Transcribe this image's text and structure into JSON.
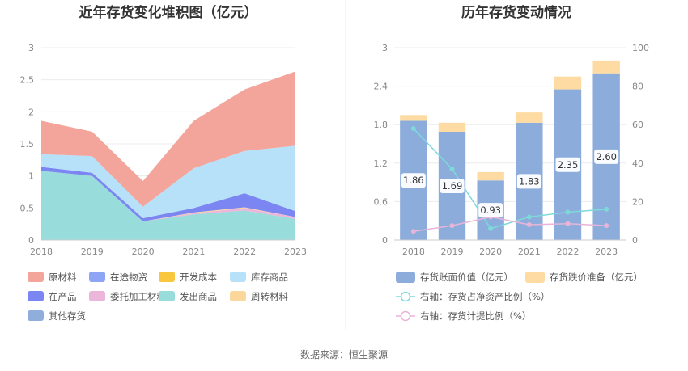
{
  "chart_data": [
    {
      "type": "area",
      "title": "近年存货变化堆积图（亿元）",
      "x": [
        "2018",
        "2019",
        "2020",
        "2021",
        "2022",
        "2023"
      ],
      "ylim": [
        0,
        3
      ],
      "yticks": [
        "0",
        "0.5",
        "1",
        "1.5",
        "2",
        "2.5",
        "3"
      ],
      "series": [
        {
          "name": "原材料",
          "color": "#f4a59b",
          "values": [
            0.52,
            0.38,
            0.4,
            0.74,
            0.96,
            1.16
          ]
        },
        {
          "name": "在途物资",
          "color": "#8ea4f5",
          "values": [
            0,
            0,
            0,
            0,
            0,
            0
          ]
        },
        {
          "name": "开发成本",
          "color": "#f9c73d",
          "values": [
            0,
            0,
            0,
            0,
            0,
            0
          ]
        },
        {
          "name": "库存商品",
          "color": "#b6e1f8",
          "values": [
            0.2,
            0.26,
            0.18,
            0.62,
            0.66,
            1.02
          ]
        },
        {
          "name": "在产品",
          "color": "#7b86f2",
          "values": [
            0.06,
            0.05,
            0.05,
            0.07,
            0.22,
            0.09
          ]
        },
        {
          "name": "委托加工材料",
          "color": "#ebb6d9",
          "values": [
            0,
            0,
            0,
            0.02,
            0.04,
            0.03
          ]
        },
        {
          "name": "发出商品",
          "color": "#98dcdc",
          "values": [
            1.08,
            1.0,
            0.29,
            0.4,
            0.46,
            0.33
          ]
        },
        {
          "name": "周转材料",
          "color": "#fbd79b",
          "values": [
            0,
            0,
            0,
            0.01,
            0.01,
            0
          ]
        },
        {
          "name": "其他存货",
          "color": "#8faedc",
          "values": [
            0,
            0,
            0,
            0,
            0,
            0
          ]
        }
      ],
      "legend": "bottom"
    },
    {
      "type": "bar",
      "title": "历年存货变动情况",
      "categories": [
        "2018",
        "2019",
        "2020",
        "2021",
        "2022",
        "2023"
      ],
      "ylim_left": [
        0,
        3
      ],
      "yticks_left": [
        "0",
        "0.6",
        "1.2",
        "1.8",
        "2.4",
        "3"
      ],
      "ylim_right": [
        0,
        100
      ],
      "yticks_right": [
        "0",
        "20",
        "40",
        "60",
        "80",
        "100"
      ],
      "series": [
        {
          "name": "存货账面价值（亿元）",
          "color": "#8caddc",
          "values": [
            1.86,
            1.69,
            0.93,
            1.83,
            2.35,
            2.6
          ],
          "labels": [
            "1.86",
            "1.69",
            "0.93",
            "1.83",
            "2.35",
            "2.60"
          ]
        },
        {
          "name": "存货跌价准备（亿元）",
          "color": "#fddba3",
          "values": [
            0.09,
            0.14,
            0.13,
            0.16,
            0.2,
            0.2
          ]
        },
        {
          "name": "右轴：存货占净资产比例（%）",
          "color": "#7ed9d9",
          "type": "line",
          "axis": "right",
          "values": [
            58,
            37,
            6,
            12,
            14.5,
            16
          ]
        },
        {
          "name": "右轴：存货计提比例（%）",
          "color": "#e8b4d8",
          "type": "line",
          "axis": "right",
          "values": [
            4.5,
            7.5,
            12,
            8,
            8.5,
            7.5
          ]
        }
      ],
      "legend": "bottom"
    }
  ],
  "source": "数据来源：恒生聚源"
}
